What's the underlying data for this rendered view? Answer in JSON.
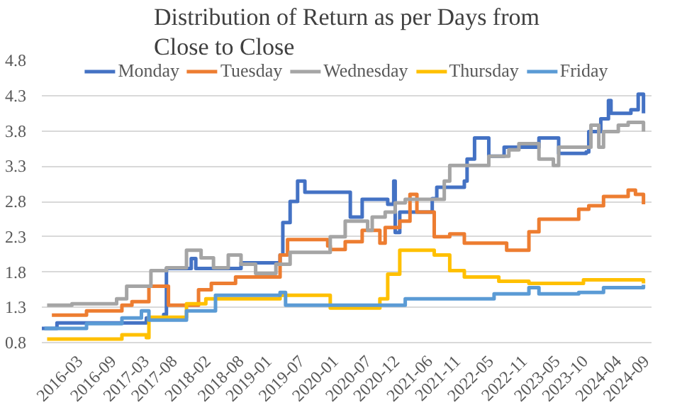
{
  "chart_data": {
    "type": "step",
    "title": "Distribution of Return as per Days from\nClose to Close",
    "xlim": [
      "2015-08-07",
      "2024-09-30"
    ],
    "ylim": [
      0.8,
      4.8
    ],
    "yticks": [
      0.8,
      1.3,
      1.8,
      2.3,
      2.8,
      3.3,
      3.8,
      4.3,
      4.8
    ],
    "xticks": [
      "2016-03",
      "2016-09",
      "2017-03",
      "2017-08",
      "2018-02",
      "2018-08",
      "2019-01",
      "2019-07",
      "2020-01",
      "2020-07",
      "2020-12",
      "2021-06",
      "2021-11",
      "2022-05",
      "2022-11",
      "2023-05",
      "2023-10",
      "2024-04",
      "2024-09"
    ],
    "grid": "y",
    "legend": "top",
    "series": [
      {
        "name": "Monday",
        "color": "#4472c4",
        "x": [
          "2015-08-07",
          "2015-10-29",
          "2017-03-02",
          "2017-06-05",
          "2017-06-20",
          "2017-11-03",
          "2017-11-28",
          "2018-08-03",
          "2019-03-05",
          "2019-03-20",
          "2019-04-29",
          "2019-06-09",
          "2019-07-19",
          "2020-03-24",
          "2020-05-28",
          "2020-10-15",
          "2020-11-17",
          "2020-11-25",
          "2020-12-20",
          "2021-06-16",
          "2021-07-11",
          "2021-12-09",
          "2021-12-24",
          "2022-02-03",
          "2022-04-22",
          "2022-07-15",
          "2023-01-22",
          "2023-05-10",
          "2023-10-08",
          "2023-10-22",
          "2023-12-27",
          "2024-02-07",
          "2024-02-21",
          "2024-06-09",
          "2024-07-19",
          "2024-08-17"
        ],
        "values": [
          1.0,
          1.08,
          1.15,
          1.2,
          1.85,
          1.99,
          1.85,
          1.93,
          2.04,
          2.5,
          2.8,
          3.09,
          2.93,
          2.58,
          2.83,
          2.76,
          3.09,
          2.36,
          2.65,
          2.84,
          3.0,
          3.09,
          3.4,
          3.7,
          3.44,
          3.57,
          3.7,
          3.48,
          3.5,
          3.79,
          3.97,
          4.23,
          4.05,
          4.1,
          4.32,
          4.05
        ]
      },
      {
        "name": "Tuesday",
        "color": "#ed7d31",
        "x": [
          "2015-10-01",
          "2016-04-08",
          "2016-10-19",
          "2016-12-13",
          "2017-03-16",
          "2017-07-01",
          "2017-12-13",
          "2018-02-21",
          "2018-07-04",
          "2019-03-05",
          "2019-04-15",
          "2019-11-21",
          "2019-12-05",
          "2020-02-25",
          "2020-05-28",
          "2020-09-02",
          "2020-10-01",
          "2020-12-20",
          "2021-02-14",
          "2021-03-24",
          "2021-06-27",
          "2021-09-20",
          "2021-12-09",
          "2022-07-29",
          "2022-11-28",
          "2023-01-22",
          "2023-08-28",
          "2023-10-22",
          "2024-01-11",
          "2024-05-25",
          "2024-07-04",
          "2024-08-17"
        ],
        "values": [
          1.19,
          1.25,
          1.33,
          1.38,
          1.6,
          1.33,
          1.55,
          1.64,
          1.73,
          2.04,
          2.26,
          2.17,
          2.12,
          2.23,
          2.39,
          2.21,
          2.43,
          2.52,
          2.9,
          2.65,
          2.3,
          2.34,
          2.21,
          2.11,
          2.37,
          2.55,
          2.69,
          2.74,
          2.87,
          2.96,
          2.9,
          2.76
        ]
      },
      {
        "name": "Wednesday",
        "color": "#a5a5a5",
        "x": [
          "2015-09-05",
          "2016-01-19",
          "2016-09-20",
          "2016-11-14",
          "2017-03-27",
          "2017-06-20",
          "2017-10-08",
          "2017-12-27",
          "2018-03-05",
          "2018-05-25",
          "2018-08-03",
          "2018-10-22",
          "2019-02-10",
          "2019-04-29",
          "2019-12-05",
          "2020-02-25",
          "2020-06-27",
          "2020-07-22",
          "2020-10-01",
          "2020-11-25",
          "2021-01-19",
          "2021-08-21",
          "2021-09-20",
          "2022-04-22",
          "2022-08-10",
          "2022-10-04",
          "2023-01-22",
          "2023-04-11",
          "2023-05-10",
          "2023-11-03",
          "2023-12-16",
          "2024-01-11",
          "2024-04-01",
          "2024-05-25",
          "2024-08-17"
        ],
        "values": [
          1.33,
          1.35,
          1.42,
          1.6,
          1.82,
          1.86,
          2.11,
          2.0,
          1.86,
          2.04,
          1.91,
          1.78,
          1.91,
          2.08,
          2.3,
          2.52,
          2.39,
          2.58,
          2.65,
          2.78,
          2.83,
          3.09,
          3.31,
          3.44,
          3.53,
          3.62,
          3.4,
          3.31,
          3.57,
          3.88,
          3.57,
          3.79,
          3.88,
          3.92,
          3.79
        ]
      },
      {
        "name": "Thursday",
        "color": "#ffc000",
        "x": [
          "2015-09-05",
          "2016-10-19",
          "2017-03-02",
          "2017-03-16",
          "2017-10-08",
          "2018-01-22",
          "2019-03-05",
          "2019-12-05",
          "2020-09-02",
          "2020-10-15",
          "2020-12-20",
          "2021-06-27",
          "2021-09-20",
          "2021-12-09",
          "2022-06-16",
          "2022-11-28",
          "2023-09-23",
          "2024-08-17"
        ],
        "values": [
          0.85,
          0.91,
          0.87,
          1.16,
          1.35,
          1.42,
          1.47,
          1.29,
          1.42,
          1.77,
          2.11,
          2.04,
          1.82,
          1.73,
          1.67,
          1.64,
          1.69,
          1.64
        ]
      },
      {
        "name": "Friday",
        "color": "#5b9bd5",
        "x": [
          "2015-08-21",
          "2016-04-08",
          "2016-10-19",
          "2017-02-03",
          "2017-03-16",
          "2017-10-08",
          "2018-03-16",
          "2019-03-05",
          "2019-04-04",
          "2020-10-01",
          "2021-01-19",
          "2022-05-21",
          "2022-11-28",
          "2023-01-22",
          "2023-08-28",
          "2024-01-11",
          "2024-08-17"
        ],
        "values": [
          1.0,
          1.07,
          1.15,
          1.25,
          1.12,
          1.25,
          1.47,
          1.51,
          1.33,
          1.33,
          1.42,
          1.49,
          1.58,
          1.49,
          1.51,
          1.58,
          1.62
        ]
      }
    ]
  }
}
